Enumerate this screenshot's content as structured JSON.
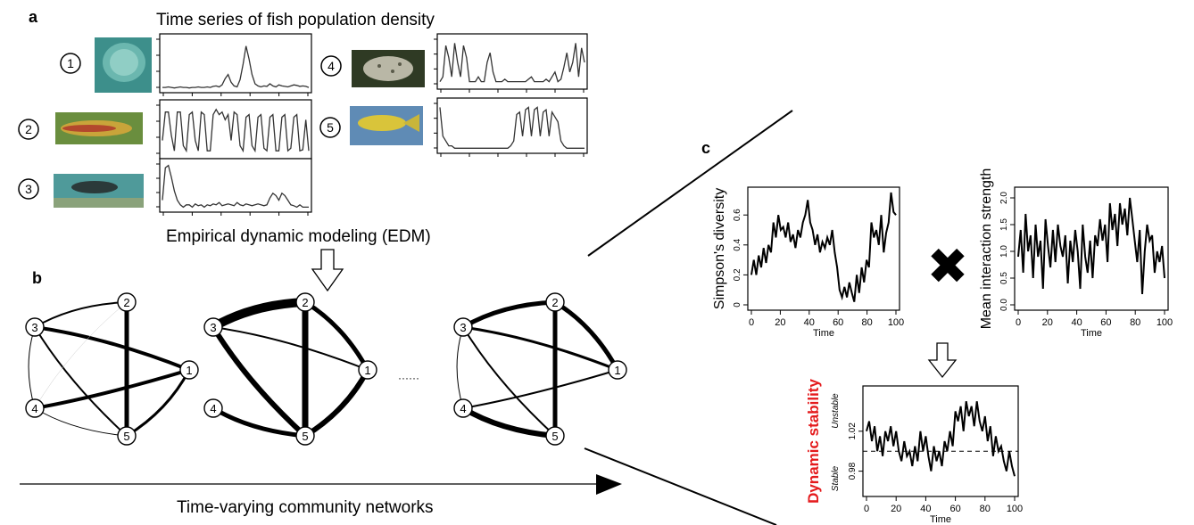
{
  "panel_a": {
    "letter": "a",
    "title": "Time series of fish population density",
    "fish": [
      {
        "id": "1",
        "photo": "jellyfish-photo",
        "series": [
          0.05,
          0.05,
          0.06,
          0.05,
          0.04,
          0.05,
          0.06,
          0.05,
          0.05,
          0.04,
          0.05,
          0.05,
          0.06,
          0.05,
          0.05,
          0.06,
          0.05,
          0.07,
          0.08,
          0.06,
          0.1,
          0.22,
          0.3,
          0.15,
          0.08,
          0.06,
          0.2,
          0.5,
          0.85,
          0.6,
          0.3,
          0.12,
          0.08,
          0.06,
          0.08,
          0.07,
          0.12,
          0.08,
          0.06,
          0.1,
          0.08,
          0.07,
          0.06,
          0.08,
          0.1,
          0.09,
          0.07,
          0.08,
          0.07,
          0.05
        ]
      },
      {
        "id": "2",
        "photo": "striped-fish-photo",
        "series": [
          0.3,
          0.85,
          0.85,
          0.4,
          0.1,
          0.85,
          0.85,
          0.2,
          0.1,
          0.8,
          0.85,
          0.3,
          0.1,
          0.85,
          0.8,
          0.1,
          0.1,
          0.8,
          0.9,
          0.8,
          0.85,
          0.7,
          0.8,
          0.3,
          0.85,
          0.8,
          0.2,
          0.1,
          0.75,
          0.8,
          0.2,
          0.1,
          0.75,
          0.8,
          0.15,
          0.1,
          0.75,
          0.8,
          0.1,
          0.1,
          0.75,
          0.8,
          0.1,
          0.15,
          0.75,
          0.8,
          0.1,
          0.12,
          0.7,
          0.1
        ]
      },
      {
        "id": "3",
        "photo": "wrasse-photo",
        "series": [
          0.2,
          0.9,
          0.95,
          0.7,
          0.4,
          0.2,
          0.1,
          0.05,
          0.1,
          0.1,
          0.05,
          0.12,
          0.08,
          0.1,
          0.05,
          0.1,
          0.08,
          0.12,
          0.1,
          0.15,
          0.08,
          0.1,
          0.12,
          0.1,
          0.08,
          0.15,
          0.1,
          0.08,
          0.12,
          0.1,
          0.08,
          0.1,
          0.12,
          0.1,
          0.08,
          0.1,
          0.25,
          0.35,
          0.3,
          0.2,
          0.35,
          0.3,
          0.2,
          0.1,
          0.08,
          0.05,
          0.1,
          0.05,
          0.05,
          0.05
        ]
      },
      {
        "id": "4",
        "photo": "spotted-fish-photo",
        "series": [
          0.1,
          0.2,
          0.85,
          0.6,
          0.2,
          0.9,
          0.5,
          0.2,
          0.85,
          0.6,
          0.1,
          0.1,
          0.1,
          0.2,
          0.1,
          0.1,
          0.5,
          0.7,
          0.3,
          0.1,
          0.1,
          0.1,
          0.15,
          0.1,
          0.1,
          0.1,
          0.1,
          0.1,
          0.1,
          0.1,
          0.15,
          0.2,
          0.1,
          0.1,
          0.1,
          0.1,
          0.15,
          0.1,
          0.2,
          0.3,
          0.1,
          0.15,
          0.4,
          0.7,
          0.3,
          0.5,
          0.9,
          0.2,
          0.8,
          0.5
        ]
      },
      {
        "id": "5",
        "photo": "yellow-fish-photo",
        "series": [
          0.9,
          0.3,
          0.2,
          0.1,
          0.1,
          0.05,
          0.05,
          0.05,
          0.05,
          0.05,
          0.05,
          0.05,
          0.05,
          0.05,
          0.05,
          0.05,
          0.05,
          0.05,
          0.05,
          0.05,
          0.05,
          0.05,
          0.05,
          0.05,
          0.1,
          0.2,
          0.75,
          0.8,
          0.3,
          0.85,
          0.9,
          0.3,
          0.85,
          0.9,
          0.3,
          0.8,
          0.85,
          0.3,
          0.8,
          0.7,
          0.6,
          0.2,
          0.1,
          0.05,
          0.05,
          0.05,
          0.05,
          0.05,
          0.05,
          0.05
        ]
      }
    ]
  },
  "edm_label": "Empirical dynamic modeling (EDM)",
  "panel_b": {
    "letter": "b",
    "ellipsis": "······",
    "bottom_label": "Time-varying community networks",
    "networks": [
      {
        "edges": [
          {
            "from": "3",
            "to": "2",
            "w": 2
          },
          {
            "from": "3",
            "to": "1",
            "w": 4
          },
          {
            "from": "3",
            "to": "5",
            "w": 2
          },
          {
            "from": "3",
            "to": "4",
            "w": 1
          },
          {
            "from": "2",
            "to": "5",
            "w": 5
          },
          {
            "from": "2",
            "to": "4",
            "w": 0.5,
            "faint": true
          },
          {
            "from": "1",
            "to": "4",
            "w": 4
          },
          {
            "from": "1",
            "to": "5",
            "w": 3
          },
          {
            "from": "4",
            "to": "5",
            "w": 1
          }
        ]
      },
      {
        "edges": [
          {
            "from": "3",
            "to": "2",
            "w": 10
          },
          {
            "from": "3",
            "to": "1",
            "w": 2
          },
          {
            "from": "3",
            "to": "5",
            "w": 6
          },
          {
            "from": "2",
            "to": "1",
            "w": 5
          },
          {
            "from": "2",
            "to": "5",
            "w": 7
          },
          {
            "from": "1",
            "to": "5",
            "w": 6
          },
          {
            "from": "4",
            "to": "5",
            "w": 5
          }
        ]
      },
      {
        "edges": [
          {
            "from": "3",
            "to": "2",
            "w": 5
          },
          {
            "from": "3",
            "to": "1",
            "w": 3
          },
          {
            "from": "3",
            "to": "5",
            "w": 2
          },
          {
            "from": "3",
            "to": "4",
            "w": 1
          },
          {
            "from": "2",
            "to": "1",
            "w": 5
          },
          {
            "from": "2",
            "to": "5",
            "w": 5
          },
          {
            "from": "1",
            "to": "4",
            "w": 2
          },
          {
            "from": "4",
            "to": "5",
            "w": 6
          }
        ]
      }
    ]
  },
  "panel_c": {
    "letter": "c",
    "operator": "✖",
    "charts": [
      {
        "ylabel": "Simpson's diversity",
        "xlabel": "Time",
        "ylim": [
          0,
          0.75
        ],
        "yticks": [
          "0",
          "0.2",
          "0.4",
          "0.6"
        ],
        "xticks": [
          "0",
          "20",
          "40",
          "60",
          "80",
          "100"
        ],
        "series": [
          0.2,
          0.3,
          0.2,
          0.33,
          0.25,
          0.38,
          0.28,
          0.4,
          0.35,
          0.55,
          0.45,
          0.6,
          0.5,
          0.52,
          0.45,
          0.55,
          0.42,
          0.47,
          0.38,
          0.5,
          0.45,
          0.55,
          0.6,
          0.7,
          0.55,
          0.5,
          0.4,
          0.47,
          0.35,
          0.42,
          0.38,
          0.45,
          0.4,
          0.5,
          0.35,
          0.25,
          0.1,
          0.05,
          0.12,
          0.05,
          0.15,
          0.08,
          0.02,
          0.2,
          0.08,
          0.25,
          0.15,
          0.3,
          0.25,
          0.55,
          0.45,
          0.5,
          0.4,
          0.6,
          0.35,
          0.48,
          0.55,
          0.75,
          0.62,
          0.6
        ]
      },
      {
        "ylabel": "Mean interaction strength",
        "xlabel": "Time",
        "ylim": [
          0,
          2.1
        ],
        "yticks": [
          "0.0",
          "0.5",
          "1.0",
          "1.5",
          "2.0"
        ],
        "xticks": [
          "0",
          "20",
          "40",
          "60",
          "80",
          "100"
        ],
        "series": [
          0.9,
          1.4,
          0.6,
          1.7,
          1.0,
          1.3,
          0.5,
          1.5,
          0.9,
          1.2,
          0.3,
          1.6,
          1.1,
          0.7,
          1.4,
          0.8,
          1.5,
          1.1,
          0.9,
          1.3,
          0.4,
          1.2,
          0.8,
          1.4,
          1.0,
          0.3,
          1.5,
          0.9,
          0.6,
          1.2,
          0.5,
          1.3,
          1.1,
          1.6,
          1.2,
          1.5,
          0.8,
          1.9,
          1.4,
          1.7,
          1.1,
          1.9,
          1.5,
          1.8,
          1.3,
          2.0,
          1.6,
          1.2,
          0.8,
          1.4,
          0.2,
          1.0,
          1.5,
          1.2,
          1.3,
          0.6,
          1.0,
          0.8,
          1.1,
          0.5
        ]
      },
      {
        "ylabel": "Dynamic stability",
        "xlabel": "Time",
        "ylim": [
          0.96,
          1.06
        ],
        "yticks": [
          "0.98",
          "1.02"
        ],
        "region_top": "Unstable",
        "region_bottom": "Stable",
        "xticks": [
          "0",
          "20",
          "40",
          "60",
          "80",
          "100"
        ],
        "series": [
          1.02,
          1.03,
          1.01,
          1.025,
          1.0,
          1.015,
          0.995,
          1.02,
          1.01,
          1.025,
          1.005,
          1.02,
          1.0,
          0.99,
          1.01,
          0.995,
          1.0,
          0.985,
          1.005,
          0.99,
          1.02,
          1.0,
          1.015,
          0.995,
          0.98,
          1.005,
          0.99,
          1.0,
          0.985,
          1.01,
          1.0,
          1.02,
          1.005,
          1.04,
          1.03,
          1.045,
          1.02,
          1.05,
          1.035,
          1.045,
          1.025,
          1.05,
          1.03,
          1.02,
          1.035,
          1.01,
          1.025,
          0.995,
          1.015,
          1.0,
          1.005,
          0.99,
          0.98,
          1.0,
          0.985,
          0.975
        ]
      }
    ]
  },
  "colors": {
    "stability_label": "#e41a1c",
    "axis": "#000000"
  }
}
